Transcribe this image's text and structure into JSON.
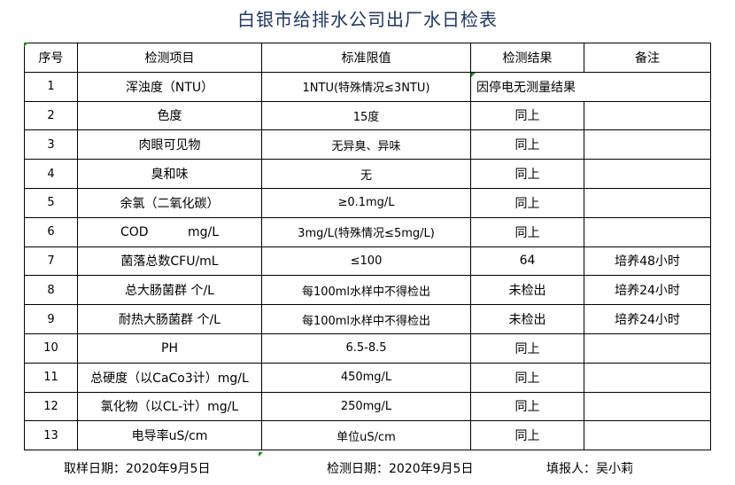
{
  "title": "白银市给排水公司出厂水日检表",
  "headers": [
    "序号",
    "检测项目",
    "标准限值",
    "检测结果",
    "备注"
  ],
  "rows": [
    {
      "no": "1",
      "item": "浑浊度（NTU）",
      "limit": "1NTU(特殊情况≤3NTU)",
      "result": "因停电无测量结果",
      "note": ""
    },
    {
      "no": "2",
      "item": "色度",
      "limit": "15度",
      "result": "同上",
      "note": ""
    },
    {
      "no": "3",
      "item": "肉眼可见物",
      "limit": "无异臭、异味",
      "result": "同上",
      "note": ""
    },
    {
      "no": "4",
      "item": "臭和味",
      "limit": "无",
      "result": "同上",
      "note": ""
    },
    {
      "no": "5",
      "item": "余氯（二氧化碳）",
      "limit": "≥0.1mg/L",
      "result": "同上",
      "note": ""
    },
    {
      "no": "6",
      "item": "COD          mg/L",
      "limit": "3mg/L(特殊情况≤5mg/L)",
      "result": "同上",
      "note": ""
    },
    {
      "no": "7",
      "item": "菌落总数CFU/mL",
      "limit": "≤100",
      "result": "64",
      "note": "培养48小时"
    },
    {
      "no": "8",
      "item": "总大肠菌群 个/L",
      "limit": "每100ml水样中不得检出",
      "result": "未检出",
      "note": "培养24小时"
    },
    {
      "no": "9",
      "item": "耐热大肠菌群 个/L",
      "limit": "每100ml水样中不得检出",
      "result": "未检出",
      "note": "培养24小时"
    },
    {
      "no": "10",
      "item": "PH",
      "limit": "6.5-8.5",
      "result": "同上",
      "note": ""
    },
    {
      "no": "11",
      "item": "总硬度（以CaCo3计）mg/L",
      "limit": "450mg/L",
      "result": "同上",
      "note": ""
    },
    {
      "no": "12",
      "item": "氯化物（以CL-计）mg/L",
      "limit": "250mg/L",
      "result": "同上",
      "note": ""
    },
    {
      "no": "13",
      "item": "电导率uS/cm",
      "limit": "单位uS/cm",
      "result": "同上",
      "note": ""
    }
  ],
  "footer": {
    "sample_date": "取样日期：2020年9月5日",
    "test_date": "检测日期：2020年9月5日",
    "reporter": "填报人：吴小莉"
  }
}
